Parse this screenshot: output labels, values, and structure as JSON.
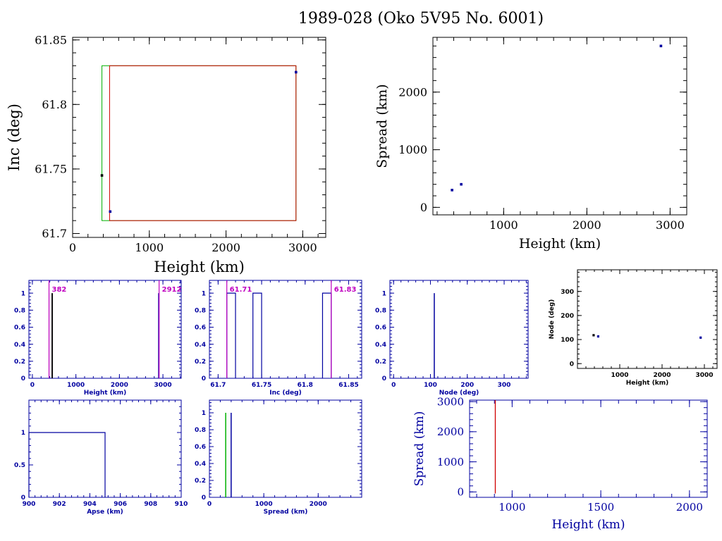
{
  "title": "1989-028 (Oko 5V95 No. 6001)",
  "colors": {
    "blue": "#0000a0",
    "red": "#d00000",
    "green": "#00b000",
    "magenta": "#c000c0",
    "black": "#000000"
  },
  "chart_data": [
    {
      "id": "inc_vs_height",
      "type": "scatter",
      "xlabel": "Height (km)",
      "ylabel": "Inc (deg)",
      "xlim": [
        0,
        3300
      ],
      "ylim": [
        61.697,
        61.852
      ],
      "xticks": [
        0,
        1000,
        2000,
        3000
      ],
      "xtick_labels": [
        "0",
        "1000",
        "2000",
        "3000"
      ],
      "yticks": [
        61.7,
        61.75,
        61.8,
        61.85
      ],
      "ytick_labels": [
        "61.7",
        "61.75",
        "61.8",
        "61.85"
      ],
      "points": [
        {
          "x": 382,
          "y": 61.745,
          "color": "black"
        },
        {
          "x": 490,
          "y": 61.717,
          "color": "blue"
        },
        {
          "x": 2912,
          "y": 61.825,
          "color": "blue"
        }
      ],
      "boxes": [
        {
          "x0": 382,
          "x1": 2912,
          "y0": 61.71,
          "y1": 61.83,
          "color": "green"
        },
        {
          "x0": 482,
          "x1": 2912,
          "y0": 61.71,
          "y1": 61.83,
          "color": "red"
        }
      ]
    },
    {
      "id": "spread_vs_height",
      "type": "scatter",
      "xlabel": "Height (km)",
      "ylabel": "Spread (km)",
      "xlim": [
        150,
        3200
      ],
      "ylim": [
        -130,
        2950
      ],
      "xticks": [
        1000,
        2000,
        3000
      ],
      "xtick_labels": [
        "1000",
        "2000",
        "3000"
      ],
      "yticks": [
        0,
        1000,
        2000
      ],
      "ytick_labels": [
        "0",
        "1000",
        "2000"
      ],
      "points": [
        {
          "x": 380,
          "y": 300,
          "color": "blue"
        },
        {
          "x": 490,
          "y": 400,
          "color": "blue"
        },
        {
          "x": 2890,
          "y": 2800,
          "color": "blue"
        }
      ]
    },
    {
      "id": "height_hist",
      "type": "bar",
      "xlabel": "Height (km)",
      "ylabel": "",
      "xlim": [
        -80,
        3420
      ],
      "ylim": [
        0,
        1.15
      ],
      "xticks": [
        0,
        1000,
        2000,
        3000
      ],
      "xtick_labels": [
        "0",
        "1000",
        "2000",
        "3000"
      ],
      "yticks": [
        0,
        0.2,
        0.4,
        0.6,
        0.8,
        1
      ],
      "ytick_labels": [
        "0",
        "0.2",
        "0.4",
        "0.6",
        "0.8",
        "1"
      ],
      "bars": [
        {
          "x0": 440,
          "x1": 470,
          "value": 1,
          "color": "black"
        },
        {
          "x0": 2890,
          "x1": 2920,
          "value": 1,
          "color": "blue"
        }
      ],
      "markers": [
        {
          "x": 382,
          "label": "382"
        },
        {
          "x": 2912,
          "label": "2912"
        }
      ]
    },
    {
      "id": "inc_hist",
      "type": "bar",
      "xlabel": "Inc (deg)",
      "ylabel": "",
      "xlim": [
        61.69,
        61.865
      ],
      "ylim": [
        0,
        1.15
      ],
      "xticks": [
        61.7,
        61.75,
        61.8,
        61.85
      ],
      "xtick_labels": [
        "61.7",
        "61.75",
        "61.8",
        "61.85"
      ],
      "yticks": [
        0,
        0.2,
        0.4,
        0.6,
        0.8,
        1
      ],
      "ytick_labels": [
        "0",
        "0.2",
        "0.4",
        "0.6",
        "0.8",
        "1"
      ],
      "bars": [
        {
          "x0": 61.71,
          "x1": 61.72,
          "value": 1,
          "color": "blue"
        },
        {
          "x0": 61.74,
          "x1": 61.75,
          "value": 1,
          "color": "blue"
        },
        {
          "x0": 61.82,
          "x1": 61.83,
          "value": 1,
          "color": "blue"
        }
      ],
      "markers": [
        {
          "x": 61.71,
          "label": "61.71"
        },
        {
          "x": 61.83,
          "label": "61.83"
        }
      ]
    },
    {
      "id": "node_hist",
      "type": "bar",
      "xlabel": "Node (deg)",
      "ylabel": "",
      "xlim": [
        -10,
        365
      ],
      "ylim": [
        0,
        1.15
      ],
      "xticks": [
        0,
        100,
        200,
        300
      ],
      "xtick_labels": [
        "0",
        "100",
        "200",
        "300"
      ],
      "yticks": [
        0,
        0.2,
        0.4,
        0.6,
        0.8,
        1
      ],
      "ytick_labels": [
        "0",
        "0.2",
        "0.4",
        "0.6",
        "0.8",
        "1"
      ],
      "bars": [
        {
          "x0": 109,
          "x1": 111,
          "value": 1,
          "color": "blue"
        }
      ]
    },
    {
      "id": "node_vs_height",
      "type": "scatter",
      "xlabel": "Height (km)",
      "ylabel": "Node (deg)",
      "xlim": [
        0,
        3300
      ],
      "ylim": [
        -20,
        390
      ],
      "xticks": [
        1000,
        2000,
        3000
      ],
      "xtick_labels": [
        "1000",
        "2000",
        "3000"
      ],
      "yticks": [
        0,
        100,
        200,
        300
      ],
      "ytick_labels": [
        "0",
        "100",
        "200",
        "300"
      ],
      "points": [
        {
          "x": 382,
          "y": 118,
          "color": "black"
        },
        {
          "x": 490,
          "y": 113,
          "color": "blue"
        },
        {
          "x": 2912,
          "y": 108,
          "color": "blue"
        }
      ]
    },
    {
      "id": "apse_hist",
      "type": "bar",
      "xlabel": "Apse (km)",
      "ylabel": "",
      "xlim": [
        900,
        910
      ],
      "ylim": [
        0,
        1.5
      ],
      "xticks": [
        900,
        902,
        904,
        906,
        908,
        910
      ],
      "xtick_labels": [
        "900",
        "902",
        "904",
        "906",
        "908",
        "910"
      ],
      "yticks": [
        0,
        0.5,
        1
      ],
      "ytick_labels": [
        "0",
        "0.5",
        "1"
      ],
      "bars": [
        {
          "x0": 900,
          "x1": 905,
          "value": 1,
          "color": "blue"
        }
      ]
    },
    {
      "id": "spread_hist",
      "type": "bar",
      "xlabel": "Spread (km)",
      "ylabel": "",
      "xlim": [
        0,
        2800
      ],
      "ylim": [
        0,
        1.15
      ],
      "xticks": [
        0,
        1000,
        2000
      ],
      "xtick_labels": [
        "0",
        "1000",
        "2000"
      ],
      "yticks": [
        0,
        0.2,
        0.4,
        0.6,
        0.8,
        1
      ],
      "ytick_labels": [
        "0",
        "0.2",
        "0.4",
        "0.6",
        "0.8",
        "1"
      ],
      "bars": [
        {
          "x0": 290,
          "x1": 300,
          "value": 1,
          "color": "green"
        },
        {
          "x0": 390,
          "x1": 405,
          "value": 1,
          "color": "blue"
        }
      ]
    },
    {
      "id": "spread_vs_height_2",
      "type": "line",
      "xlabel": "Height (km)",
      "ylabel": "Spread (km)",
      "xlim": [
        760,
        2100
      ],
      "ylim": [
        -180,
        3050
      ],
      "xticks": [
        1000,
        1500,
        2000
      ],
      "xtick_labels": [
        "1000",
        "1500",
        "2000"
      ],
      "yticks": [
        0,
        1000,
        2000,
        3000
      ],
      "ytick_labels": [
        "0",
        "1000",
        "2000",
        "3000"
      ],
      "lines": [
        {
          "x": [
            905,
            905
          ],
          "y": [
            -50,
            3050
          ],
          "color": "red"
        }
      ]
    }
  ]
}
